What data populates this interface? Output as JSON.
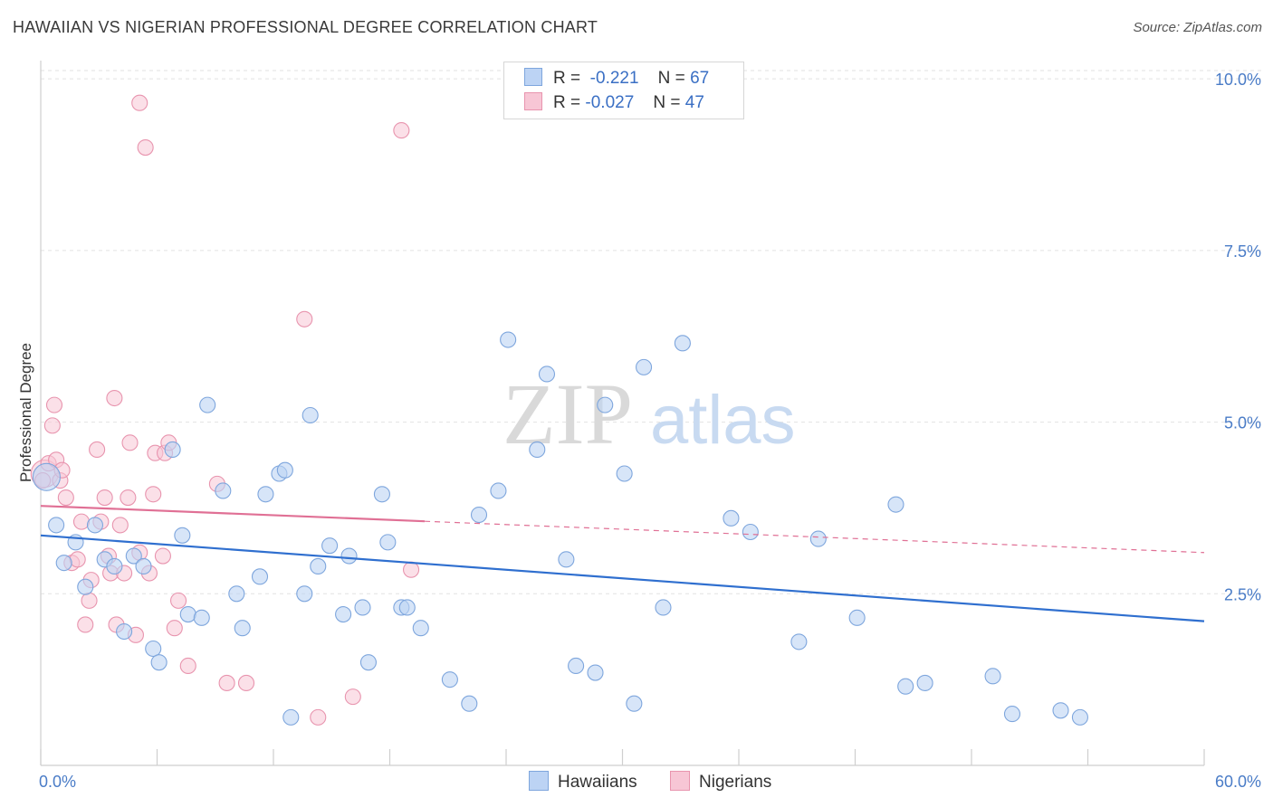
{
  "header": {
    "title": "HAWAIIAN VS NIGERIAN PROFESSIONAL DEGREE CORRELATION CHART",
    "source": "Source: ZipAtlas.com"
  },
  "watermark": {
    "zip": "ZIP",
    "atlas": "atlas"
  },
  "legend": {
    "rows": [
      {
        "r_label": "R =",
        "r_value": "-0.221",
        "n_label": "N =",
        "n_value": "67"
      },
      {
        "r_label": "R =",
        "r_value": "-0.027",
        "n_label": "N =",
        "n_value": "47"
      }
    ]
  },
  "bottom_legend": {
    "hawaiians": "Hawaiians",
    "nigerians": "Nigerians"
  },
  "colors": {
    "hawaiians_fill": "#bcd3f4",
    "hawaiians_stroke": "#7ea6dd",
    "hawaiians_line": "#2f6fcf",
    "nigerians_fill": "#f7c6d5",
    "nigerians_stroke": "#e894ae",
    "nigerians_line": "#e07095",
    "tick_label": "#4a7cc7",
    "grid": "#e2e2e2"
  },
  "chart_data": {
    "type": "scatter",
    "title": "HAWAIIAN VS NIGERIAN PROFESSIONAL DEGREE CORRELATION CHART",
    "xlabel": "",
    "ylabel": "Professional Degree",
    "x_unit": "%",
    "y_unit": "%",
    "xlim": [
      0,
      60
    ],
    "ylim": [
      0,
      10.2
    ],
    "x_tick_labels": [
      "0.0%",
      "60.0%"
    ],
    "y_ticks": [
      2.5,
      5.0,
      7.5,
      10.0
    ],
    "y_tick_labels": [
      "2.5%",
      "5.0%",
      "7.5%",
      "10.0%"
    ],
    "grid": "horizontal dashed",
    "legend_position": "top-center",
    "series": [
      {
        "name": "Hawaiians",
        "r": -0.221,
        "n": 67,
        "trend": {
          "x0": 0,
          "y0": 3.35,
          "x1": 60,
          "y1": 2.1
        },
        "points": [
          [
            0.3,
            4.2
          ],
          [
            0.8,
            3.5
          ],
          [
            1.2,
            2.95
          ],
          [
            1.8,
            3.25
          ],
          [
            2.3,
            2.6
          ],
          [
            2.8,
            3.5
          ],
          [
            3.3,
            3.0
          ],
          [
            3.8,
            2.9
          ],
          [
            4.3,
            1.95
          ],
          [
            4.8,
            3.05
          ],
          [
            5.3,
            2.9
          ],
          [
            5.8,
            1.7
          ],
          [
            6.1,
            1.5
          ],
          [
            6.8,
            4.6
          ],
          [
            7.3,
            3.35
          ],
          [
            7.6,
            2.2
          ],
          [
            8.3,
            2.15
          ],
          [
            8.6,
            5.25
          ],
          [
            9.4,
            4.0
          ],
          [
            10.1,
            2.5
          ],
          [
            10.4,
            2.0
          ],
          [
            11.3,
            2.75
          ],
          [
            11.6,
            3.95
          ],
          [
            12.3,
            4.25
          ],
          [
            12.6,
            4.3
          ],
          [
            12.9,
            0.7
          ],
          [
            13.6,
            2.5
          ],
          [
            13.9,
            5.1
          ],
          [
            14.3,
            2.9
          ],
          [
            14.9,
            3.2
          ],
          [
            15.6,
            2.2
          ],
          [
            15.9,
            3.05
          ],
          [
            16.6,
            2.3
          ],
          [
            16.9,
            1.5
          ],
          [
            17.6,
            3.95
          ],
          [
            17.9,
            3.25
          ],
          [
            18.6,
            2.3
          ],
          [
            18.9,
            2.3
          ],
          [
            19.6,
            2.0
          ],
          [
            21.1,
            1.25
          ],
          [
            22.1,
            0.9
          ],
          [
            22.6,
            3.65
          ],
          [
            23.6,
            4.0
          ],
          [
            24.1,
            6.2
          ],
          [
            25.6,
            4.6
          ],
          [
            26.1,
            5.7
          ],
          [
            27.1,
            3.0
          ],
          [
            27.6,
            1.45
          ],
          [
            28.6,
            1.35
          ],
          [
            29.1,
            5.25
          ],
          [
            30.1,
            4.25
          ],
          [
            30.6,
            0.9
          ],
          [
            31.1,
            5.8
          ],
          [
            32.1,
            2.3
          ],
          [
            33.1,
            6.15
          ],
          [
            35.6,
            3.6
          ],
          [
            36.6,
            3.4
          ],
          [
            39.1,
            1.8
          ],
          [
            40.1,
            3.3
          ],
          [
            42.1,
            2.15
          ],
          [
            44.1,
            3.8
          ],
          [
            44.6,
            1.15
          ],
          [
            45.6,
            1.2
          ],
          [
            49.1,
            1.3
          ],
          [
            50.1,
            0.75
          ],
          [
            52.6,
            0.8
          ],
          [
            53.6,
            0.7
          ]
        ]
      },
      {
        "name": "Nigerians",
        "r": -0.027,
        "n": 47,
        "trend": {
          "x0": 0,
          "y0": 3.78,
          "x1": 60,
          "y1": 3.1,
          "solid_until_x": 19.8
        },
        "points": [
          [
            0.2,
            4.25
          ],
          [
            0.4,
            4.4
          ],
          [
            0.6,
            4.95
          ],
          [
            0.7,
            5.25
          ],
          [
            0.8,
            4.45
          ],
          [
            1.0,
            4.15
          ],
          [
            1.1,
            4.3
          ],
          [
            1.3,
            3.9
          ],
          [
            1.6,
            2.95
          ],
          [
            1.9,
            3.0
          ],
          [
            2.1,
            3.55
          ],
          [
            2.3,
            2.05
          ],
          [
            2.5,
            2.4
          ],
          [
            2.6,
            2.7
          ],
          [
            2.9,
            4.6
          ],
          [
            3.1,
            3.55
          ],
          [
            3.3,
            3.9
          ],
          [
            3.5,
            3.05
          ],
          [
            3.6,
            2.8
          ],
          [
            3.8,
            5.35
          ],
          [
            3.9,
            2.05
          ],
          [
            4.1,
            3.5
          ],
          [
            4.3,
            2.8
          ],
          [
            4.5,
            3.9
          ],
          [
            4.6,
            4.7
          ],
          [
            4.9,
            1.9
          ],
          [
            5.1,
            3.1
          ],
          [
            5.1,
            9.65
          ],
          [
            5.4,
            9.0
          ],
          [
            5.6,
            2.8
          ],
          [
            5.8,
            3.95
          ],
          [
            5.9,
            4.55
          ],
          [
            6.3,
            3.05
          ],
          [
            6.4,
            4.55
          ],
          [
            6.6,
            4.7
          ],
          [
            6.9,
            2.0
          ],
          [
            7.1,
            2.4
          ],
          [
            7.6,
            1.45
          ],
          [
            9.1,
            4.1
          ],
          [
            9.6,
            1.2
          ],
          [
            10.6,
            1.2
          ],
          [
            13.6,
            6.5
          ],
          [
            14.3,
            0.7
          ],
          [
            16.1,
            1.0
          ],
          [
            18.6,
            9.25
          ],
          [
            19.1,
            2.85
          ],
          [
            0.1,
            4.15
          ]
        ]
      }
    ]
  }
}
